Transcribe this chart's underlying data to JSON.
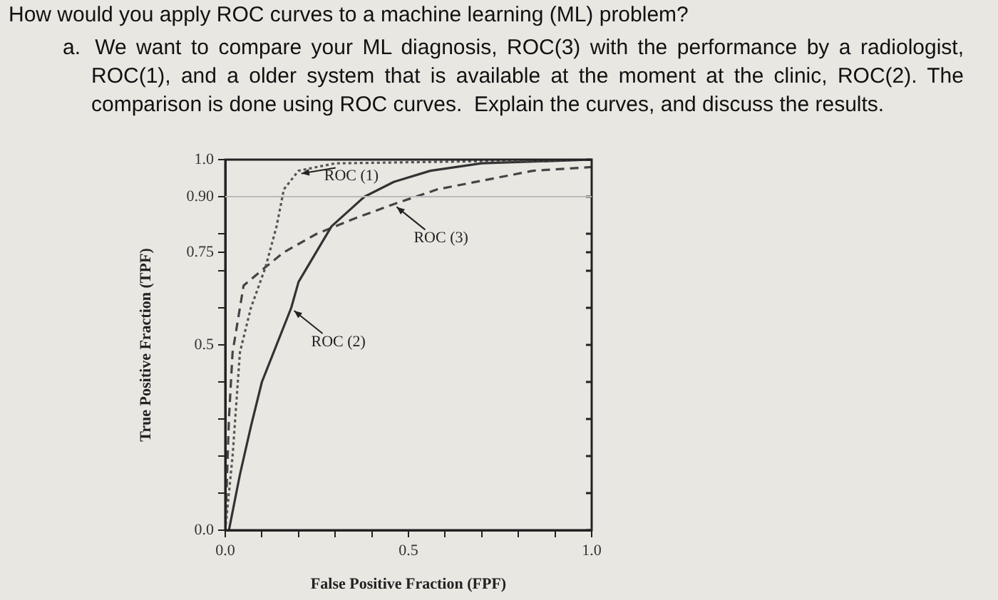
{
  "chart_data": {
    "type": "line",
    "title": "How would you apply ROC curves to a machine learning (ML) problem?",
    "subtitle": "a.\tWe want to compare your ML diagnosis, ROC(3) with the performance by a radiologist, ROC(1), and a older system that is available at the moment at the clinic, ROC(2). The comparison is done using ROC curves.  Explain the curves, and discuss the results.",
    "xlabel": "False Positive Fraction (FPF)",
    "ylabel": "True Positive Fraction (TPF)",
    "series": [
      {
        "color": "#555555",
        "line_style": "dotted",
        "x": [
          0,
          0.02,
          0.04,
          0.07,
          0.11,
          0.14,
          0.16,
          0.2,
          0.3,
          1
        ],
        "values": [
          0,
          0.2,
          0.48,
          0.6,
          0.71,
          0.82,
          0.92,
          0.97,
          0.99,
          1
        ]
      },
      {
        "color": "#333333",
        "line_style": "solid",
        "x": [
          0.01,
          0.04,
          0.07,
          0.1,
          0.18,
          0.2,
          0.29,
          0.38,
          0.46,
          0.56,
          0.7,
          1
        ],
        "values": [
          0,
          0.15,
          0.28,
          0.4,
          0.6,
          0.67,
          0.82,
          0.9,
          0.94,
          0.97,
          0.99,
          1
        ]
      },
      {
        "color": "#444444",
        "line_style": "dashed",
        "x": [
          0,
          0.01,
          0.02,
          0.05,
          0.11,
          0.16,
          0.25,
          0.35,
          0.46,
          0.58,
          0.84,
          1
        ],
        "values": [
          0,
          0.3,
          0.48,
          0.66,
          0.71,
          0.75,
          0.8,
          0.84,
          0.88,
          0.92,
          0.97,
          0.98
        ]
      }
    ],
    "xlim": [
      0,
      1
    ],
    "ylim": [
      0,
      1
    ],
    "xticks": [
      {
        "value": 0,
        "label": "0.0"
      },
      {
        "value": 0.1,
        "label": null
      },
      {
        "value": 0.2,
        "label": null
      },
      {
        "value": 0.3,
        "label": null
      },
      {
        "value": 0.4,
        "label": null
      },
      0.5,
      {
        "value": 0.6,
        "label": null
      },
      {
        "value": 0.7,
        "label": null
      },
      {
        "value": 0.8,
        "label": null
      },
      {
        "value": 0.9,
        "label": null
      },
      {
        "value": 1,
        "label": "1.0"
      }
    ],
    "yticks": [
      {
        "value": 0,
        "label": "0.0"
      },
      {
        "value": 0.1,
        "label": null
      },
      {
        "value": 0.2,
        "label": null
      },
      {
        "value": 0.3,
        "label": null
      },
      {
        "value": 0.4,
        "label": null
      },
      0.5,
      {
        "value": 0.6,
        "label": null
      },
      {
        "value": 0.7,
        "label": null
      },
      0.75,
      {
        "value": 0.8,
        "label": null
      },
      {
        "value": 0.9,
        "label": "0.90"
      },
      {
        "value": 1,
        "label": "1.0"
      }
    ],
    "ref_lines": [
      {
        "axis": "y",
        "value": 0.9,
        "label": null,
        "color": "#bbbbbb"
      }
    ],
    "annotations": [
      {
        "text": "ROC (1)",
        "x": 0.2,
        "y": 0.97
      },
      {
        "text": "ROC (2)",
        "x": 0.18,
        "y": 0.6
      },
      {
        "text": "ROC (3)",
        "x": 0.46,
        "y": 0.88
      }
    ],
    "grid": false,
    "legend": false,
    "marker": "none"
  }
}
